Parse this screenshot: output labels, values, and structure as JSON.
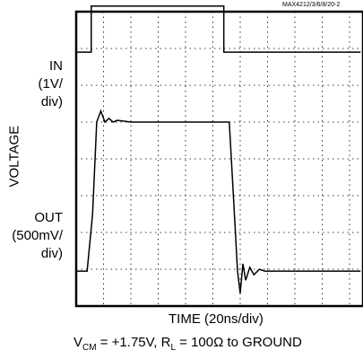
{
  "chart_data": {
    "type": "line",
    "part_code": "MAX4212/3/6/8/20-2",
    "ylabel": "VOLTAGE",
    "xlabel": "TIME (20ns/div)",
    "caption": {
      "vcm_main": "V",
      "vcm_sub": "CM",
      "vcm_value": " = +1.75V, R",
      "rl_sub": "L",
      "rl_value": " = 100Ω to GROUND"
    },
    "grid": true,
    "divisions": {
      "x": 10,
      "y": 8
    },
    "series": [
      {
        "name": "IN",
        "label_lines": [
          "IN",
          "(1V/",
          "div)"
        ],
        "scale": "1V/div",
        "x_divisions": [
          0,
          0.55,
          0.55,
          5.4,
          5.4,
          10.4
        ],
        "y_divisions": [
          6.9,
          6.9,
          8.15,
          8.15,
          6.9,
          6.9
        ],
        "comment": "y in graticule divisions from bottom"
      },
      {
        "name": "OUT",
        "label_lines": [
          "OUT",
          "(500mV/",
          "div)"
        ],
        "scale": "500mV/div",
        "x_divisions": [
          0,
          0.4,
          0.6,
          0.75,
          0.9,
          1.05,
          1.2,
          1.35,
          1.5,
          2.0,
          5.6,
          5.75,
          5.9,
          6.0,
          6.1,
          6.2,
          6.35,
          6.5,
          6.7,
          6.9,
          7.2,
          10.4
        ],
        "y_divisions": [
          0.95,
          0.95,
          2.5,
          5.0,
          5.3,
          5.0,
          5.1,
          5.0,
          5.05,
          5.0,
          5.0,
          3.0,
          0.95,
          0.35,
          1.15,
          0.7,
          1.05,
          0.85,
          1.0,
          0.95,
          0.95,
          0.95
        ]
      }
    ]
  }
}
